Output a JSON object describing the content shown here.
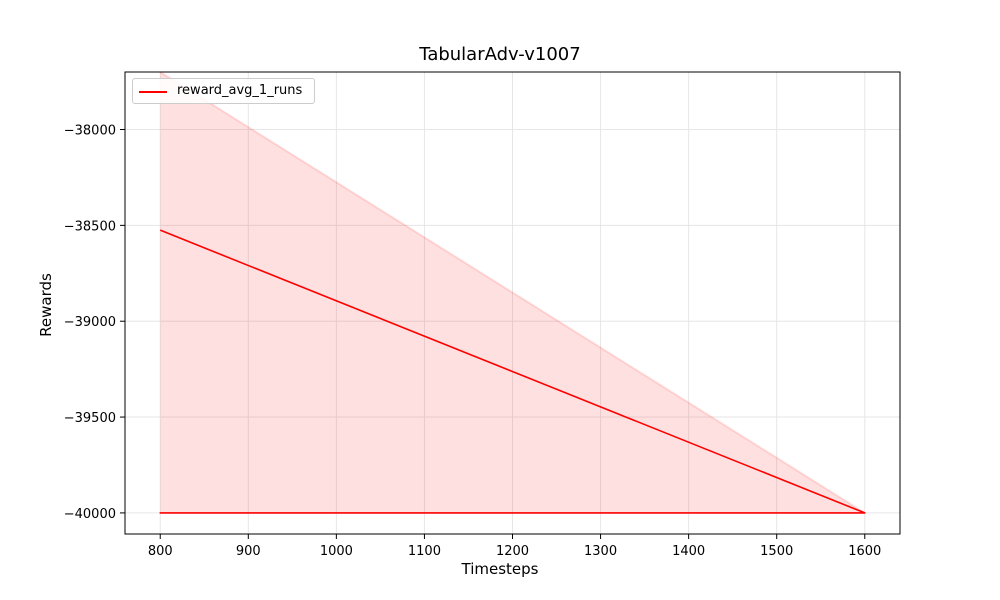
{
  "chart_data": {
    "type": "line",
    "title": "TabularAdv-v1007",
    "xlabel": "Timesteps",
    "ylabel": "Rewards",
    "xlim": [
      760,
      1640
    ],
    "ylim": [
      -40110,
      -37700
    ],
    "xticks": [
      800,
      900,
      1000,
      1100,
      1200,
      1300,
      1400,
      1500,
      1600
    ],
    "yticks": [
      -40000,
      -39500,
      -39000,
      -38500,
      -38000
    ],
    "ytick_labels": [
      "−40000",
      "−39500",
      "−39000",
      "−38500",
      "−38000"
    ],
    "grid": true,
    "legend_position": "top-left",
    "series": [
      {
        "name": "reward_avg_1_runs",
        "color": "#ff0000",
        "x": [
          800,
          1600,
          800,
          1600
        ],
        "y": [
          -38525,
          -40000,
          -40000,
          -40000
        ]
      }
    ],
    "band": {
      "color": "#ff0000",
      "opacity": 0.12,
      "x": [
        800,
        1600
      ],
      "upper": [
        -37700,
        -40000
      ],
      "lower": [
        -40000,
        -40000
      ]
    }
  }
}
